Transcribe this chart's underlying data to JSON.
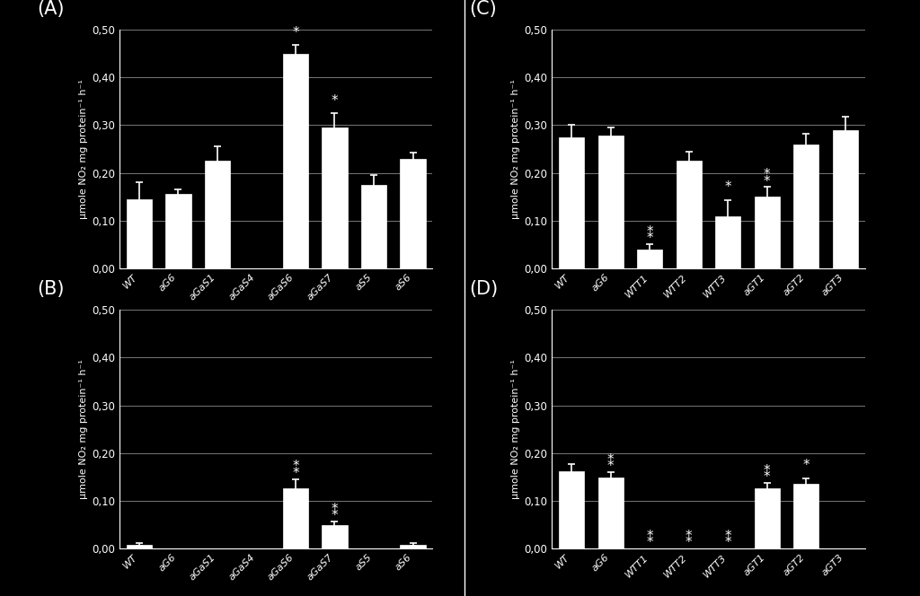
{
  "background_color": "#000000",
  "bar_color": "#ffffff",
  "text_color": "#ffffff",
  "grid_color": "#777777",
  "ylabel": "μmole NO₂ mg protein⁻¹ h⁻¹",
  "ylim": [
    0.0,
    0.5
  ],
  "yticks": [
    0.0,
    0.1,
    0.2,
    0.3,
    0.4,
    0.5
  ],
  "ytick_labels": [
    "0,00",
    "0,10",
    "0,20",
    "0,30",
    "0,40",
    "0,50"
  ],
  "panels": {
    "A": {
      "label": "(A)",
      "categories": [
        "WT",
        "aG6",
        "aGaS1",
        "aGaS4",
        "aGaS6",
        "aGaS7",
        "aS5",
        "aS6"
      ],
      "values": [
        0.145,
        0.155,
        0.225,
        0.0,
        0.45,
        0.295,
        0.175,
        0.23
      ],
      "errors": [
        0.035,
        0.01,
        0.03,
        0.0,
        0.018,
        0.03,
        0.02,
        0.012
      ],
      "sig1": [
        false,
        false,
        false,
        false,
        true,
        true,
        false,
        false
      ],
      "sig2": [
        false,
        false,
        false,
        false,
        false,
        false,
        false,
        false
      ]
    },
    "B": {
      "label": "(B)",
      "categories": [
        "WT",
        "aG6",
        "aGaS1",
        "aGaS4",
        "aGaS6",
        "aGaS7",
        "aS5",
        "aS6"
      ],
      "values": [
        0.008,
        0.0,
        0.0,
        0.0,
        0.125,
        0.048,
        0.0,
        0.008
      ],
      "errors": [
        0.003,
        0.0,
        0.0,
        0.0,
        0.02,
        0.008,
        0.0,
        0.003
      ],
      "sig1": [
        false,
        false,
        false,
        false,
        true,
        true,
        false,
        false
      ],
      "sig2": [
        false,
        false,
        false,
        false,
        true,
        true,
        false,
        false
      ]
    },
    "C": {
      "label": "(C)",
      "categories": [
        "WT",
        "aG6",
        "WTT1",
        "WTT2",
        "WTT3",
        "aGT1",
        "aGT2",
        "aGT3"
      ],
      "values": [
        0.275,
        0.278,
        0.04,
        0.225,
        0.108,
        0.15,
        0.26,
        0.29
      ],
      "errors": [
        0.025,
        0.018,
        0.01,
        0.02,
        0.035,
        0.02,
        0.022,
        0.028
      ],
      "sig1": [
        false,
        false,
        true,
        false,
        true,
        true,
        false,
        false
      ],
      "sig2": [
        false,
        false,
        true,
        false,
        false,
        true,
        false,
        false
      ]
    },
    "D": {
      "label": "(D)",
      "categories": [
        "WT",
        "aG6",
        "WTT1",
        "WTT2",
        "WTT3",
        "aGT1",
        "aGT2",
        "aGT3"
      ],
      "values": [
        0.162,
        0.148,
        0.0,
        0.0,
        0.0,
        0.125,
        0.135,
        0.0
      ],
      "errors": [
        0.015,
        0.012,
        0.0,
        0.0,
        0.0,
        0.012,
        0.012,
        0.0
      ],
      "sig1": [
        false,
        true,
        true,
        true,
        true,
        true,
        true,
        false
      ],
      "sig2": [
        false,
        true,
        true,
        true,
        true,
        true,
        false,
        false
      ]
    }
  },
  "panel_order": [
    "A",
    "B",
    "C",
    "D"
  ],
  "panel_positions": {
    "A": [
      0.13,
      0.55,
      0.34,
      0.4
    ],
    "B": [
      0.13,
      0.08,
      0.34,
      0.4
    ],
    "C": [
      0.6,
      0.55,
      0.34,
      0.4
    ],
    "D": [
      0.6,
      0.08,
      0.34,
      0.4
    ]
  }
}
